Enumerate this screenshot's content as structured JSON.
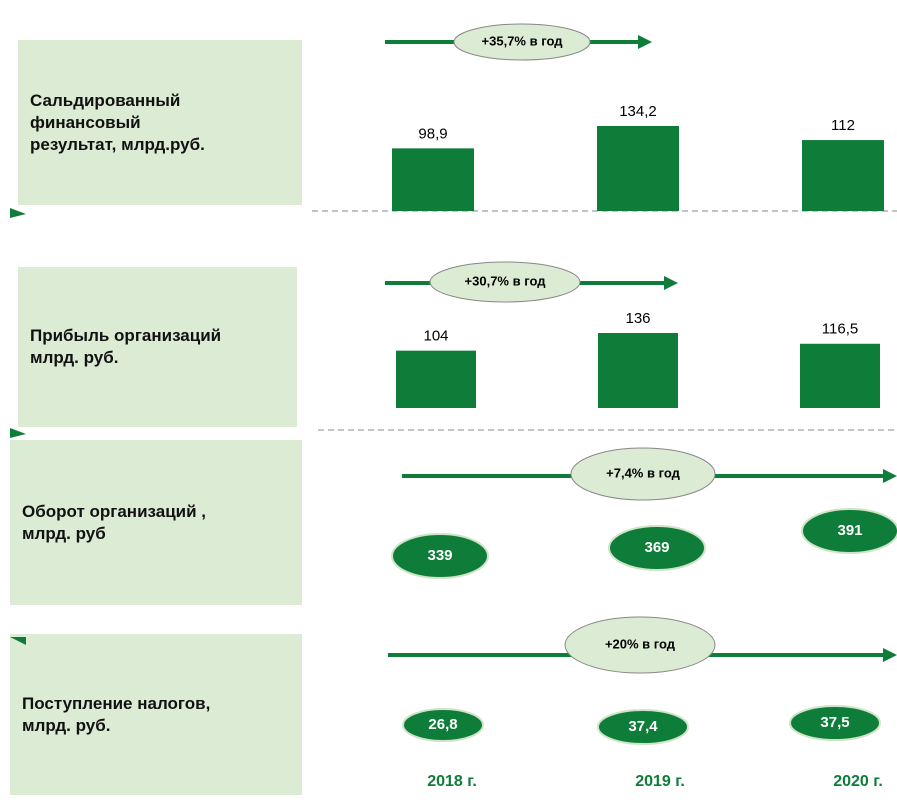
{
  "chart_data": [
    {
      "type": "bar",
      "title": "Сальдированный\nфинансовый\nрезультат, млрд.руб.",
      "annotation": "+35,7% в год",
      "values": [
        98.9,
        134.2,
        112
      ],
      "value_labels": [
        "98,9",
        "134,2",
        "112"
      ],
      "color": "#0f7d3a"
    },
    {
      "type": "bar",
      "title": "Прибыль организаций\nмлрд. руб.",
      "annotation": "+30,7% в год",
      "values": [
        104,
        136,
        116.5
      ],
      "value_labels": [
        "104",
        "136",
        "116,5"
      ],
      "color": "#0f7d3a"
    },
    {
      "type": "oval",
      "title": "Оборот организаций ,\nмлрд. руб",
      "annotation": "+7,4% в год",
      "values": [
        339,
        369,
        391
      ],
      "color": "#0f7d3a"
    },
    {
      "type": "oval",
      "title": "Поступление налогов,\nмлрд. руб.",
      "annotation": "+20% в год",
      "values": [
        26.8,
        37.4,
        37.5
      ],
      "value_labels": [
        "26,8",
        "37,4",
        "37,5"
      ],
      "color": "#0f7d3a",
      "categories": [
        "2018 г.",
        "2019 г.",
        "2020 г."
      ]
    }
  ]
}
